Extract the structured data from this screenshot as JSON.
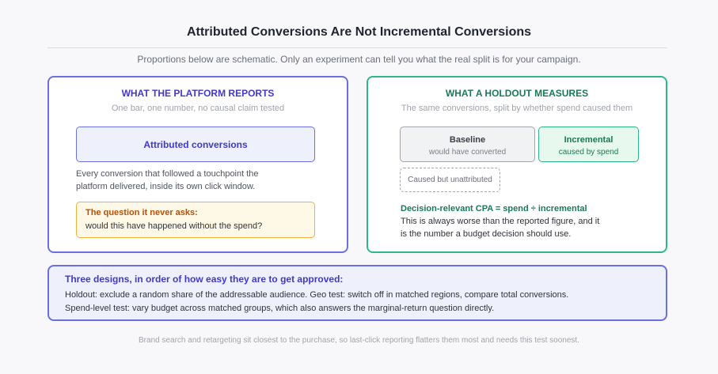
{
  "header": {
    "title": "Attributed Conversions Are Not Incremental Conversions",
    "subtitle": "Proportions below are schematic. Only an experiment can tell you what the real split is for your campaign."
  },
  "left_panel": {
    "heading": "WHAT THE PLATFORM REPORTS",
    "subheading": "One bar, one number, no causal claim tested",
    "bar_label": "Attributed conversions",
    "description": [
      "Every conversion that followed a touchpoint the",
      "platform delivered, inside its own click window."
    ],
    "callout": {
      "title": "The question it never asks:",
      "text": "would this have happened without the spend?"
    }
  },
  "right_panel": {
    "heading": "WHAT A HOLDOUT MEASURES",
    "subheading": "The same conversions, split by whether spend caused them",
    "baseline": {
      "label": "Baseline",
      "caption": "would have converted"
    },
    "incremental": {
      "label": "Incremental",
      "caption": "caused by spend"
    },
    "unattributed": "Caused but unattributed",
    "formula": "Decision-relevant CPA = spend ÷ incremental",
    "description": [
      "This is always worse than the reported figure, and it",
      "is the number a budget decision should use."
    ]
  },
  "designs": {
    "heading": "Three designs, in order of how easy they are to get approved:",
    "lines": [
      "Holdout: exclude a random share of the addressable audience. Geo test: switch off in matched regions, compare total conversions.",
      "Spend-level test: vary budget across matched groups, which also answers the marginal-return question directly."
    ]
  },
  "footer": "Brand search and retargeting sit closest to the purchase, so last-click reporting flatters them most and needs this test soonest."
}
